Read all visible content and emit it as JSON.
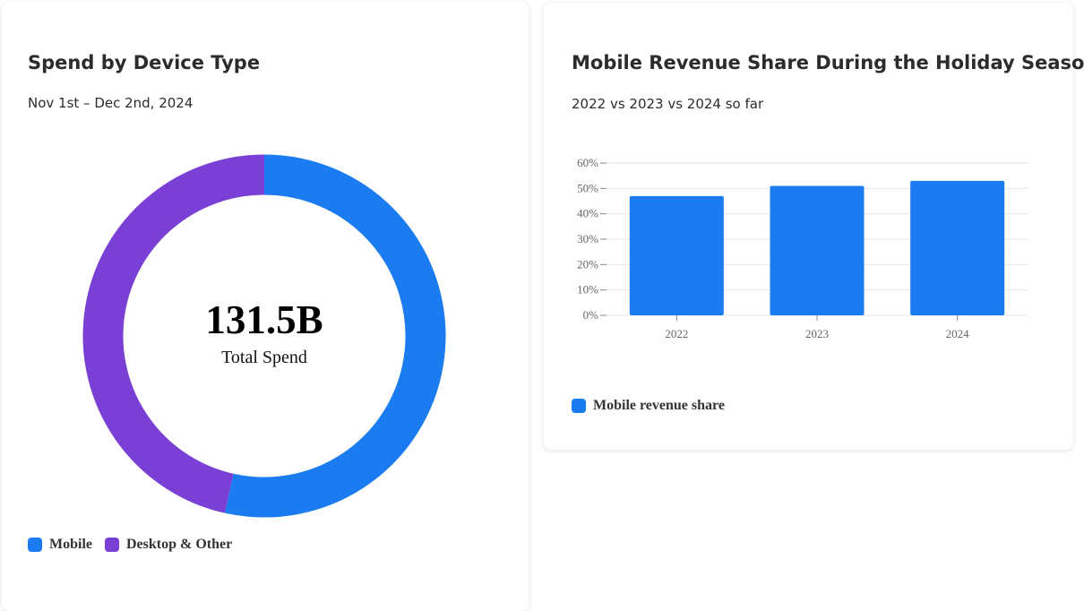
{
  "cards": [
    {
      "title": "Spend by Device Type",
      "subtitle": "Nov 1st – Dec 2nd, 2024",
      "center_value": "131.5B",
      "center_label": "Total Spend",
      "legend": [
        {
          "label": "Mobile",
          "color": "#1a7cf0"
        },
        {
          "label": "Desktop & Other",
          "color": "#7a3fd4"
        }
      ]
    },
    {
      "title": "Mobile Revenue Share During the Holiday Season",
      "subtitle": "2022 vs 2023 vs 2024 so far",
      "legend": [
        {
          "label": "Mobile revenue share",
          "color": "#1a7cf0"
        }
      ]
    }
  ],
  "chart_data": [
    {
      "type": "pie",
      "donut": true,
      "title": "Spend by Device Type",
      "subtitle": "Nov 1st – Dec 2nd, 2024",
      "center_value": "131.5B",
      "center_label": "Total Spend",
      "categories": [
        "Mobile",
        "Desktop & Other"
      ],
      "values": [
        53.5,
        46.5
      ],
      "colors": [
        "#1a7cf0",
        "#7a3fd4"
      ],
      "legend_position": "bottom-left"
    },
    {
      "type": "bar",
      "title": "Mobile Revenue Share During the Holiday Season",
      "subtitle": "2022 vs 2023 vs 2024 so far",
      "categories": [
        "2022",
        "2023",
        "2024"
      ],
      "series": [
        {
          "name": "Mobile revenue share",
          "values": [
            47,
            51,
            53
          ],
          "color": "#1a7cf0"
        }
      ],
      "y_ticks": [
        "0%",
        "10%",
        "20%",
        "30%",
        "40%",
        "50%",
        "60%"
      ],
      "ylim": [
        0,
        60
      ],
      "grid": true,
      "legend_position": "bottom-left"
    }
  ]
}
